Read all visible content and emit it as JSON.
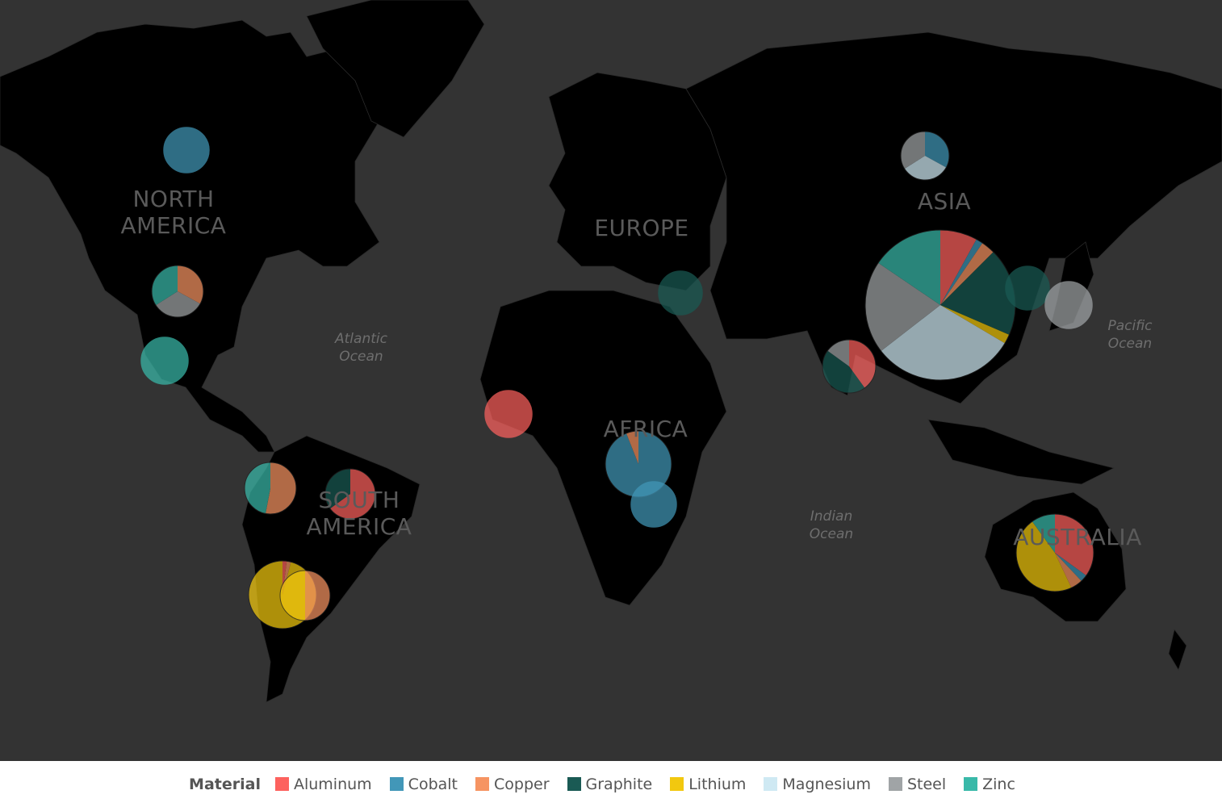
{
  "map": {
    "continent_labels": [
      {
        "id": "north-america",
        "text": "NORTH\nAMERICA"
      },
      {
        "id": "europe",
        "text": "EUROPE"
      },
      {
        "id": "asia",
        "text": "ASIA"
      },
      {
        "id": "africa",
        "text": "AFRICA"
      },
      {
        "id": "south-america",
        "text": "SOUTH\nAMERICA"
      },
      {
        "id": "australia",
        "text": "AUSTRALIA"
      }
    ],
    "ocean_labels": [
      {
        "id": "atlantic",
        "text": "Atlantic\nOcean"
      },
      {
        "id": "pacific",
        "text": "Pacific\nOcean"
      },
      {
        "id": "indian",
        "text": "Indian\nOcean"
      }
    ],
    "background_color": "#333333",
    "land_color": "#000000"
  },
  "legend": {
    "title": "Material",
    "items": [
      {
        "label": "Aluminum",
        "color": "#fd625e"
      },
      {
        "label": "Cobalt",
        "color": "#4297b8"
      },
      {
        "label": "Copper",
        "color": "#f69462"
      },
      {
        "label": "Graphite",
        "color": "#1a5a54"
      },
      {
        "label": "Lithium",
        "color": "#f2c80f"
      },
      {
        "label": "Magnesium",
        "color": "#cfe9f3"
      },
      {
        "label": "Steel",
        "color": "#a0a4a6"
      },
      {
        "label": "Zinc",
        "color": "#39b9a9"
      }
    ]
  },
  "chart_data": {
    "type": "pie-map",
    "slice_order": [
      "Aluminum",
      "Cobalt",
      "Copper",
      "Graphite",
      "Lithium",
      "Magnesium",
      "Steel",
      "Zinc"
    ],
    "pies": [
      {
        "id": "canada",
        "values": {
          "Cobalt": 100
        }
      },
      {
        "id": "usa",
        "values": {
          "Copper": 33,
          "Steel": 33,
          "Zinc": 34
        }
      },
      {
        "id": "mexico",
        "values": {
          "Zinc": 100
        }
      },
      {
        "id": "peru",
        "values": {
          "Copper": 53,
          "Zinc": 47
        }
      },
      {
        "id": "brazil",
        "values": {
          "Aluminum": 65,
          "Graphite": 35
        }
      },
      {
        "id": "chile",
        "values": {
          "Aluminum": 2,
          "Copper": 2,
          "Lithium": 96
        }
      },
      {
        "id": "argentina",
        "values": {
          "Copper": 50,
          "Lithium": 50
        }
      },
      {
        "id": "guinea",
        "values": {
          "Aluminum": 100
        }
      },
      {
        "id": "dr-congo",
        "values": {
          "Cobalt": 94,
          "Copper": 6
        }
      },
      {
        "id": "zambia",
        "values": {
          "Cobalt": 100
        }
      },
      {
        "id": "turkey",
        "values": {
          "Graphite": 100
        }
      },
      {
        "id": "russia",
        "values": {
          "Cobalt": 33,
          "Magnesium": 33,
          "Steel": 34
        }
      },
      {
        "id": "china",
        "values": {
          "Aluminum": 8,
          "Cobalt": 1.5,
          "Copper": 3,
          "Graphite": 19,
          "Lithium": 2,
          "Magnesium": 31,
          "Steel": 20,
          "Zinc": 15.5
        }
      },
      {
        "id": "india",
        "values": {
          "Aluminum": 40,
          "Graphite": 45,
          "Steel": 15
        }
      },
      {
        "id": "korea",
        "values": {
          "Graphite": 100
        }
      },
      {
        "id": "japan",
        "values": {
          "Steel": 100
        }
      },
      {
        "id": "australia",
        "values": {
          "Aluminum": 35,
          "Cobalt": 3,
          "Copper": 5,
          "Lithium": 47,
          "Zinc": 10
        }
      }
    ]
  }
}
